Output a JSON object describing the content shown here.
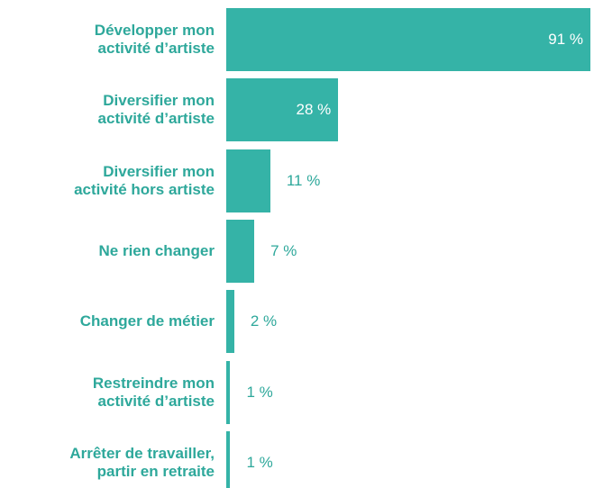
{
  "chart_data": {
    "type": "bar",
    "orientation": "horizontal",
    "categories": [
      "Développer mon\nactivité d’artiste",
      "Diversifier mon\nactivité d’artiste",
      "Diversifier mon\nactivité hors artiste",
      "Ne rien changer",
      "Changer de métier",
      "Restreindre mon\nactivité d’artiste",
      "Arrêter de travailler,\npartir en retraite"
    ],
    "values": [
      91,
      28,
      11,
      7,
      2,
      1,
      1
    ],
    "value_labels": [
      "91 %",
      "28 %",
      "11 %",
      "7 %",
      "2 %",
      "1 %",
      "1 %"
    ],
    "color": "#35b3a7"
  }
}
